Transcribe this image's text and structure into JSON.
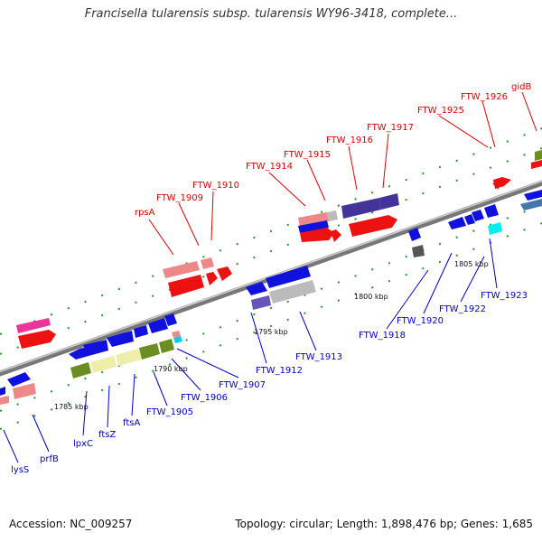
{
  "title": "Francisella tularensis subsp. tularensis WY96-3418, complete...",
  "footer": {
    "accession": "Accession: NC_009257",
    "summary": "Topology: circular; Length: 1,898,476 bp; Genes: 1,685"
  },
  "colors": {
    "forward_label": "#dd0000",
    "reverse_label": "#0000cc",
    "backbone": "#888888",
    "tick": "#228822"
  },
  "scale_labels": {
    "kbp_1785": "1785 kbp",
    "kbp_1790": "1790 kbp",
    "kbp_1795": "1795 kbp",
    "kbp_1800": "1800 kbp",
    "kbp_1805": "1805 kbp"
  },
  "forward_labels": {
    "rpsA": "rpsA",
    "ftw1909": "FTW_1909",
    "ftw1910": "FTW_1910",
    "ftw1914": "FTW_1914",
    "ftw1915": "FTW_1915",
    "ftw1916": "FTW_1916",
    "ftw1917": "FTW_1917",
    "ftw1925": "FTW_1925",
    "ftw1926": "FTW_1926",
    "gidB": "gidB"
  },
  "reverse_labels": {
    "lysS": "lysS",
    "prfB": "prfB",
    "lpxC": "lpxC",
    "ftsZ": "ftsZ",
    "ftsA": "ftsA",
    "ftw1905": "FTW_1905",
    "ftw1906": "FTW_1906",
    "ftw1907": "FTW_1907",
    "ftw1912": "FTW_1912",
    "ftw1913": "FTW_1913",
    "ftw1918": "FTW_1918",
    "ftw1920": "FTW_1920",
    "ftw1922": "FTW_1922",
    "ftw1923": "FTW_1923"
  }
}
